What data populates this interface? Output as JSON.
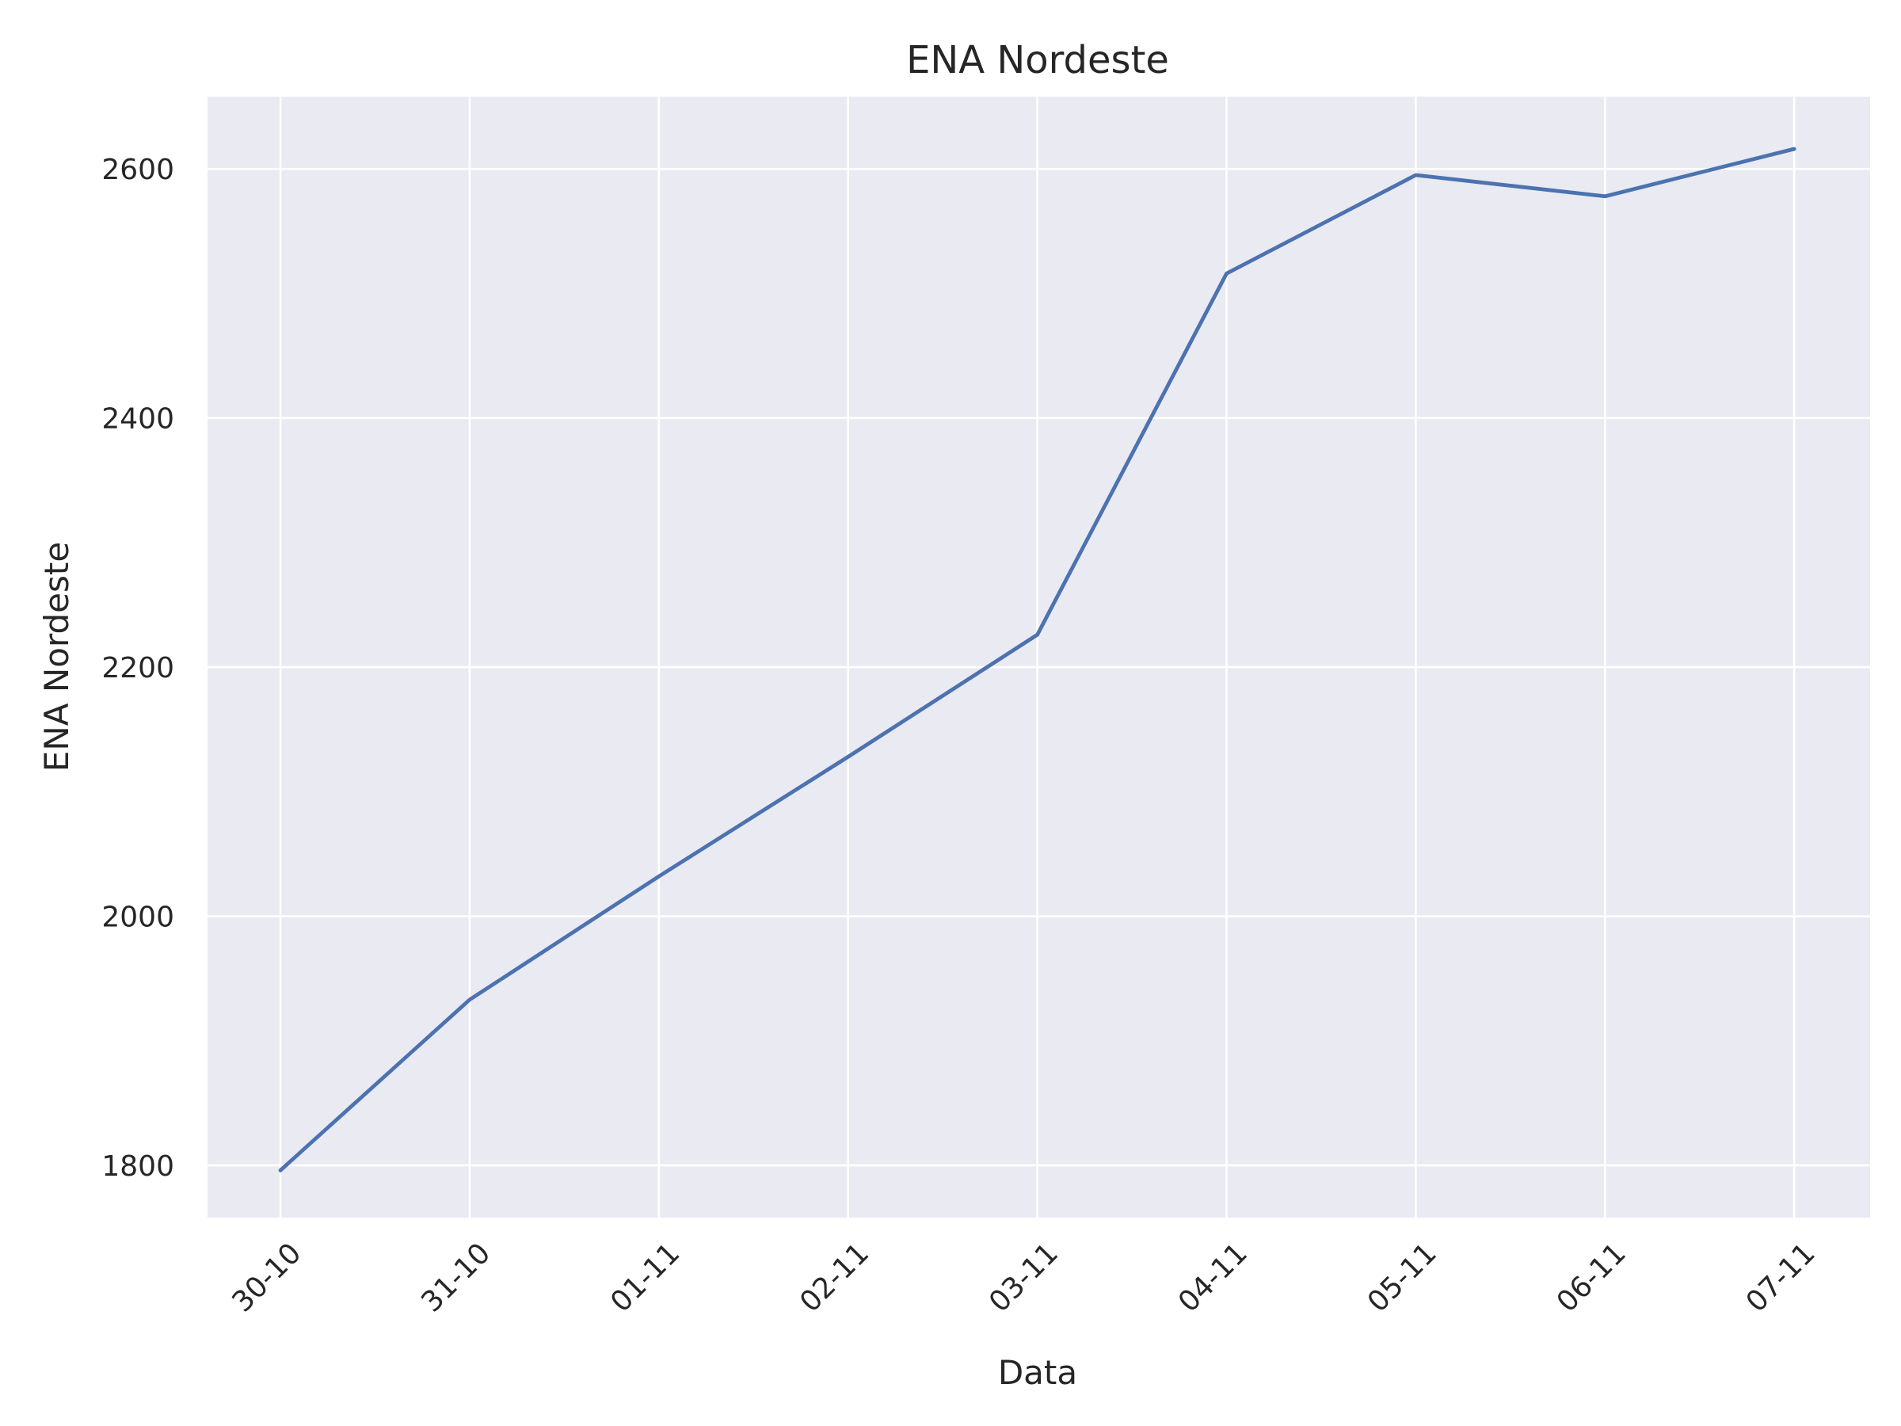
{
  "chart_data": {
    "type": "line",
    "title": "ENA Nordeste",
    "xlabel": "Data",
    "ylabel": "ENA Nordeste",
    "categories": [
      "30-10",
      "31-10",
      "01-11",
      "02-11",
      "03-11",
      "04-11",
      "05-11",
      "06-11",
      "07-11"
    ],
    "series": [
      {
        "values": [
          1796,
          1933,
          2032,
          2128,
          2226,
          2516,
          2595,
          2578,
          2616
        ]
      }
    ],
    "yticks": [
      "1800",
      "2000",
      "2200",
      "2400",
      "2600"
    ],
    "ylim": [
      1758,
      2658
    ],
    "grid": true,
    "legend": "none",
    "colors": {
      "line": "#4c72b0",
      "background": "#eaeaf2",
      "grid": "#ffffff"
    }
  }
}
